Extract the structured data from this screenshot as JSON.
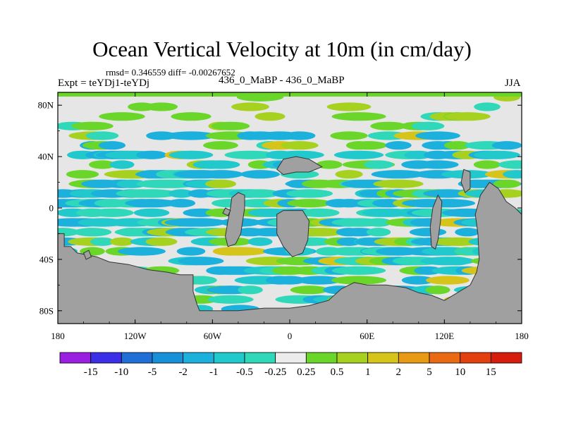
{
  "chart_data": {
    "type": "heatmap",
    "title": "Ocean Vertical Velocity at 10m (in cm/day)",
    "stats_text": "rmsd= 0.346559 diff= -0.00267652",
    "left_string": "Expt = teYDj1-teYDj",
    "center_string": "436_0_MaBP - 436_0_MaBP",
    "right_string": "JJA",
    "xlim": [
      -180,
      180
    ],
    "ylim": [
      -90,
      90
    ],
    "x_ticks": [
      {
        "value": -180,
        "label": "180"
      },
      {
        "value": -120,
        "label": "120W"
      },
      {
        "value": -60,
        "label": "60W"
      },
      {
        "value": 0,
        "label": "0"
      },
      {
        "value": 60,
        "label": "60E"
      },
      {
        "value": 120,
        "label": "120E"
      },
      {
        "value": 180,
        "label": "180"
      }
    ],
    "y_ticks": [
      {
        "value": 80,
        "label": "80N"
      },
      {
        "value": 40,
        "label": "40N"
      },
      {
        "value": 0,
        "label": "0"
      },
      {
        "value": -40,
        "label": "40S"
      },
      {
        "value": -80,
        "label": "80S"
      }
    ],
    "colorbar": {
      "labels": [
        "-15",
        "-10",
        "-5",
        "-2",
        "-1",
        "-0.5",
        "-0.25",
        "0.25",
        "0.5",
        "1",
        "2",
        "5",
        "10",
        "15"
      ],
      "colors": [
        "#9a1fe0",
        "#3a2ee6",
        "#1f6fd6",
        "#178fd9",
        "#1bb1dc",
        "#21c9cc",
        "#2ed8b8",
        "#ececec",
        "#6bd62a",
        "#a6d11f",
        "#d7c41a",
        "#e89a16",
        "#ea6a13",
        "#e4400f",
        "#d61c0c"
      ]
    },
    "land_color": "#a0a0a0",
    "background_color": "#e6e6e6",
    "land_polygons": [
      [
        [
          -180,
          -20
        ],
        [
          -175,
          -20
        ],
        [
          -175,
          -30
        ],
        [
          -170,
          -30
        ],
        [
          -165,
          -35
        ],
        [
          -150,
          -38
        ],
        [
          -140,
          -42
        ],
        [
          -125,
          -44
        ],
        [
          -110,
          -48
        ],
        [
          -95,
          -50
        ],
        [
          -85,
          -52
        ],
        [
          -75,
          -52
        ],
        [
          -75,
          -65
        ],
        [
          -72,
          -75
        ],
        [
          -70,
          -80
        ],
        [
          -55,
          -80
        ],
        [
          -40,
          -80
        ],
        [
          -20,
          -78
        ],
        [
          0,
          -78
        ],
        [
          15,
          -76
        ],
        [
          30,
          -72
        ],
        [
          40,
          -63
        ],
        [
          50,
          -58
        ],
        [
          60,
          -60
        ],
        [
          75,
          -60
        ],
        [
          90,
          -62
        ],
        [
          100,
          -66
        ],
        [
          110,
          -68
        ],
        [
          120,
          -72
        ],
        [
          130,
          -66
        ],
        [
          140,
          -60
        ],
        [
          145,
          -50
        ],
        [
          147,
          -40
        ],
        [
          146,
          -20
        ],
        [
          144,
          -5
        ],
        [
          148,
          10
        ],
        [
          155,
          20
        ],
        [
          162,
          15
        ],
        [
          168,
          5
        ],
        [
          175,
          0
        ],
        [
          180,
          -5
        ],
        [
          180,
          -90
        ],
        [
          -180,
          -90
        ]
      ],
      [
        [
          -45,
          8
        ],
        [
          -40,
          12
        ],
        [
          -35,
          10
        ],
        [
          -35,
          0
        ],
        [
          -38,
          -20
        ],
        [
          -42,
          -28
        ],
        [
          -48,
          -30
        ],
        [
          -50,
          -22
        ],
        [
          -48,
          -10
        ],
        [
          -46,
          0
        ]
      ],
      [
        [
          -10,
          -5
        ],
        [
          -5,
          -2
        ],
        [
          10,
          -2
        ],
        [
          15,
          -10
        ],
        [
          14,
          -25
        ],
        [
          10,
          -35
        ],
        [
          2,
          -38
        ],
        [
          -5,
          -30
        ],
        [
          -10,
          -20
        ]
      ],
      [
        [
          -10,
          30
        ],
        [
          -5,
          38
        ],
        [
          5,
          40
        ],
        [
          15,
          38
        ],
        [
          25,
          32
        ],
        [
          15,
          28
        ],
        [
          5,
          28
        ],
        [
          -5,
          26
        ]
      ],
      [
        [
          -50,
          0
        ],
        [
          -46,
          -2
        ],
        [
          -48,
          -6
        ],
        [
          -52,
          -4
        ]
      ],
      [
        [
          115,
          10
        ],
        [
          118,
          5
        ],
        [
          117,
          -10
        ],
        [
          115,
          -25
        ],
        [
          113,
          -32
        ],
        [
          110,
          -30
        ],
        [
          109,
          -15
        ],
        [
          111,
          0
        ]
      ],
      [
        [
          135,
          30
        ],
        [
          140,
          28
        ],
        [
          140,
          15
        ],
        [
          136,
          12
        ],
        [
          133,
          20
        ]
      ],
      [
        [
          -160,
          -35
        ],
        [
          -156,
          -33
        ],
        [
          -154,
          -38
        ],
        [
          -158,
          -40
        ]
      ]
    ]
  }
}
